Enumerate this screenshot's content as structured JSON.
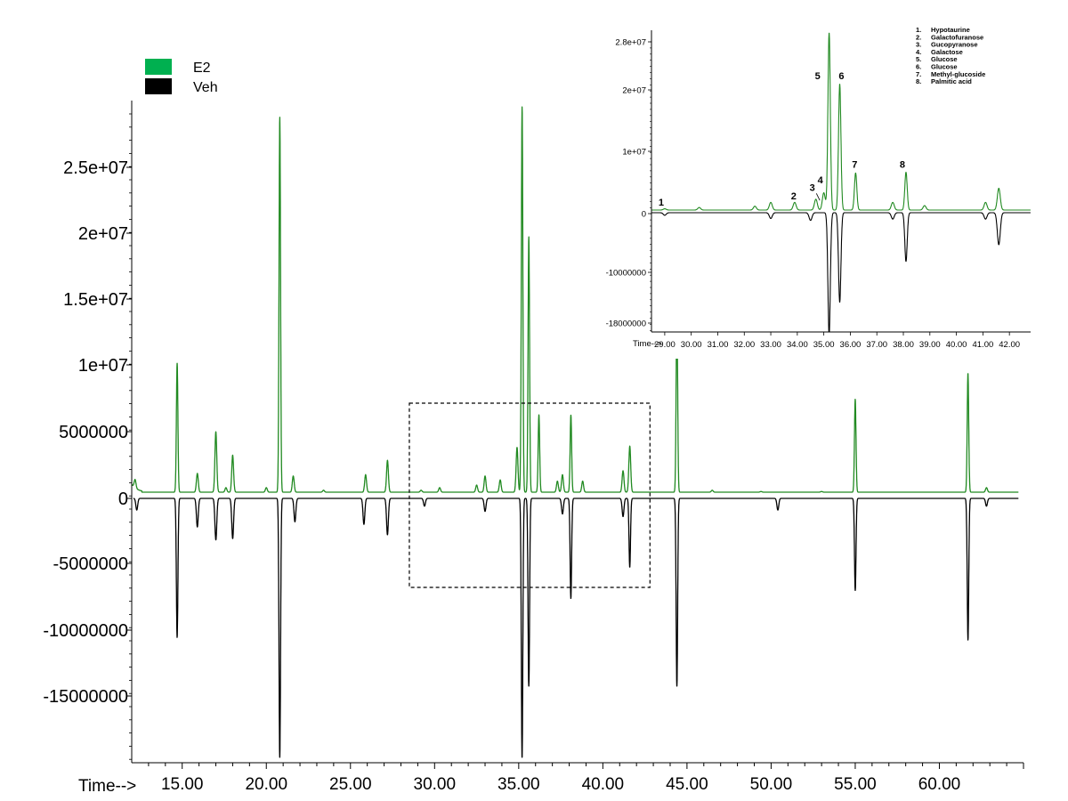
{
  "chart_data": [
    {
      "type": "line",
      "title": "",
      "xlabel": "Time-->",
      "ylabel": "",
      "xlim": [
        12,
        65
      ],
      "ylim": [
        -20000000,
        30000000
      ],
      "x_ticks": [
        "15.00",
        "20.00",
        "25.00",
        "30.00",
        "35.00",
        "40.00",
        "45.00",
        "50.00",
        "55.00",
        "60.00"
      ],
      "y_ticks": [
        "2.5e+07",
        "2e+07",
        "1.5e+07",
        "1e+07",
        "5000000",
        "0",
        "-5000000",
        "-10000000",
        "-15000000"
      ],
      "legend": {
        "placement": "top-left",
        "entries": [
          {
            "name": "E2",
            "color": "#00b050"
          },
          {
            "name": "Veh",
            "color": "#000000"
          }
        ]
      },
      "grid": false,
      "zoom_box_x_range": [
        28.5,
        42.8
      ],
      "series": [
        {
          "name": "E2",
          "color": "#218a21",
          "baseline": 350000,
          "peaks": [
            {
              "x": 12.2,
              "y": 1000000
            },
            {
              "x": 14.7,
              "y": 10300000
            },
            {
              "x": 15.9,
              "y": 1800000
            },
            {
              "x": 17.0,
              "y": 5000000
            },
            {
              "x": 17.6,
              "y": 700000
            },
            {
              "x": 18.0,
              "y": 3200000
            },
            {
              "x": 20.0,
              "y": 700000
            },
            {
              "x": 20.8,
              "y": 29200000
            },
            {
              "x": 21.6,
              "y": 1600000
            },
            {
              "x": 23.4,
              "y": 500000
            },
            {
              "x": 25.9,
              "y": 1700000
            },
            {
              "x": 27.2,
              "y": 2800000
            },
            {
              "x": 29.2,
              "y": 500000
            },
            {
              "x": 30.3,
              "y": 700000
            },
            {
              "x": 32.5,
              "y": 900000
            },
            {
              "x": 33.0,
              "y": 1600000
            },
            {
              "x": 33.9,
              "y": 1300000
            },
            {
              "x": 34.9,
              "y": 3800000
            },
            {
              "x": 35.2,
              "y": 30000000
            },
            {
              "x": 35.6,
              "y": 20000000
            },
            {
              "x": 36.2,
              "y": 6300000
            },
            {
              "x": 37.3,
              "y": 1200000
            },
            {
              "x": 37.6,
              "y": 1700000
            },
            {
              "x": 38.1,
              "y": 6300000
            },
            {
              "x": 38.8,
              "y": 1200000
            },
            {
              "x": 41.2,
              "y": 2000000
            },
            {
              "x": 41.6,
              "y": 3900000
            },
            {
              "x": 44.4,
              "y": 14200000
            },
            {
              "x": 46.5,
              "y": 500000
            },
            {
              "x": 49.4,
              "y": 400000
            },
            {
              "x": 53.0,
              "y": 400000
            },
            {
              "x": 55.0,
              "y": 7500000
            },
            {
              "x": 61.7,
              "y": 9500000
            },
            {
              "x": 62.8,
              "y": 700000
            }
          ]
        },
        {
          "name": "Veh",
          "color": "#000000",
          "baseline": 0,
          "peaks": [
            {
              "x": 12.3,
              "y": -900000
            },
            {
              "x": 14.7,
              "y": -10700000
            },
            {
              "x": 15.9,
              "y": -2200000
            },
            {
              "x": 17.0,
              "y": -3200000
            },
            {
              "x": 18.0,
              "y": -3100000
            },
            {
              "x": 20.8,
              "y": -20000000
            },
            {
              "x": 21.7,
              "y": -1800000
            },
            {
              "x": 25.8,
              "y": -2000000
            },
            {
              "x": 27.2,
              "y": -2800000
            },
            {
              "x": 29.4,
              "y": -600000
            },
            {
              "x": 33.0,
              "y": -1000000
            },
            {
              "x": 35.2,
              "y": -20000000
            },
            {
              "x": 35.6,
              "y": -14500000
            },
            {
              "x": 37.6,
              "y": -1200000
            },
            {
              "x": 38.1,
              "y": -7700000
            },
            {
              "x": 41.2,
              "y": -1400000
            },
            {
              "x": 41.6,
              "y": -5300000
            },
            {
              "x": 44.4,
              "y": -14500000
            },
            {
              "x": 50.4,
              "y": -900000
            },
            {
              "x": 55.0,
              "y": -7100000
            },
            {
              "x": 61.7,
              "y": -10900000
            },
            {
              "x": 62.8,
              "y": -600000
            }
          ]
        }
      ]
    },
    {
      "type": "line",
      "title": "",
      "xlabel": "Time-->",
      "ylabel": "",
      "xlim": [
        28.5,
        42.8
      ],
      "ylim": [
        -19000000,
        28000000
      ],
      "x_ticks": [
        "29.00",
        "30.00",
        "31.00",
        "32.00",
        "33.00",
        "34.00",
        "35.00",
        "36.00",
        "37.00",
        "38.00",
        "39.00",
        "40.00",
        "41.00",
        "42.00"
      ],
      "y_ticks": [
        "2.8e+07",
        "2e+07",
        "1e+07",
        "0",
        "-10000000",
        "-18000000"
      ],
      "grid": false,
      "compound_legend": {
        "placement": "top-right",
        "items": [
          {
            "num": "1.",
            "name": "Hypotaurine"
          },
          {
            "num": "2.",
            "name": "Galactofuranose"
          },
          {
            "num": "3.",
            "name": "Gucopyranose"
          },
          {
            "num": "4.",
            "name": "Galactose"
          },
          {
            "num": "5.",
            "name": "Glucose"
          },
          {
            "num": "6.",
            "name": "Glucose"
          },
          {
            "num": "7.",
            "name": "Methyl-glucoside"
          },
          {
            "num": "8.",
            "name": "Palmitic acid"
          }
        ]
      },
      "peak_labels": [
        {
          "label": "1",
          "x": 29.0,
          "y": 1000000
        },
        {
          "label": "2",
          "x": 34.0,
          "y": 2000000
        },
        {
          "label": "3",
          "x": 34.7,
          "y": 3300000
        },
        {
          "label": "4",
          "x": 35.0,
          "y": 4500000
        },
        {
          "label": "5",
          "x": 34.9,
          "y": 20700000
        },
        {
          "label": "6",
          "x": 35.8,
          "y": 20700000
        },
        {
          "label": "7",
          "x": 36.3,
          "y": 6900000
        },
        {
          "label": "8",
          "x": 38.1,
          "y": 6900000
        }
      ],
      "series": [
        {
          "name": "E2",
          "color": "#218a21",
          "baseline": 300000,
          "peaks": [
            {
              "x": 29.0,
              "y": 500000
            },
            {
              "x": 30.3,
              "y": 700000
            },
            {
              "x": 32.4,
              "y": 900000
            },
            {
              "x": 33.0,
              "y": 1500000
            },
            {
              "x": 33.9,
              "y": 1500000
            },
            {
              "x": 34.7,
              "y": 2000000
            },
            {
              "x": 35.0,
              "y": 3000000
            },
            {
              "x": 35.2,
              "y": 28000000
            },
            {
              "x": 35.6,
              "y": 20000000
            },
            {
              "x": 36.2,
              "y": 6100000
            },
            {
              "x": 37.6,
              "y": 1500000
            },
            {
              "x": 38.1,
              "y": 6200000
            },
            {
              "x": 38.8,
              "y": 1000000
            },
            {
              "x": 41.1,
              "y": 1500000
            },
            {
              "x": 41.6,
              "y": 3700000
            }
          ]
        },
        {
          "name": "Veh",
          "color": "#000000",
          "baseline": 0,
          "peaks": [
            {
              "x": 29.0,
              "y": -400000
            },
            {
              "x": 33.0,
              "y": -900000
            },
            {
              "x": 34.5,
              "y": -1200000
            },
            {
              "x": 35.2,
              "y": -19000000
            },
            {
              "x": 35.6,
              "y": -14000000
            },
            {
              "x": 37.6,
              "y": -1000000
            },
            {
              "x": 38.1,
              "y": -7600000
            },
            {
              "x": 41.1,
              "y": -1000000
            },
            {
              "x": 41.6,
              "y": -5000000
            }
          ]
        }
      ]
    }
  ]
}
